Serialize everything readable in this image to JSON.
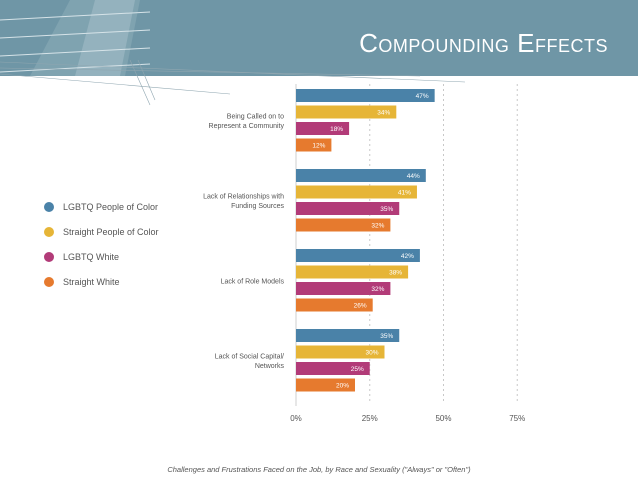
{
  "slide": {
    "title": "Compounding Effects",
    "header_color": "#6f96a6",
    "caption": "Challenges and Frustrations Faced on the Job, by Race and Sexuality (\"Always\" or \"Often\")"
  },
  "chart_data": {
    "type": "bar",
    "orientation": "horizontal",
    "title": "",
    "xlabel": "",
    "ylabel": "",
    "xlim": [
      0,
      75
    ],
    "xticks": [
      "0%",
      "25%",
      "50%",
      "75%"
    ],
    "xtick_values": [
      0,
      25,
      50,
      75
    ],
    "grid": true,
    "legend_position": "left",
    "categories": [
      [
        "Being Called on to",
        "Represent a Community"
      ],
      [
        "Lack of Relationships with",
        "Funding Sources"
      ],
      [
        "Lack of Role Models"
      ],
      [
        "Lack of Social Capital/",
        "Networks"
      ]
    ],
    "series": [
      {
        "name": "LGBTQ People of Color",
        "color": "#4a82a8",
        "values": [
          47,
          44,
          42,
          35
        ],
        "labels": [
          "47%",
          "44%",
          "42%",
          "35%"
        ]
      },
      {
        "name": "Straight People of Color",
        "color": "#e6b537",
        "values": [
          34,
          41,
          38,
          30
        ],
        "labels": [
          "34%",
          "41%",
          "38%",
          "30%"
        ]
      },
      {
        "name": "LGBTQ White",
        "color": "#b23b78",
        "values": [
          18,
          35,
          32,
          25
        ],
        "labels": [
          "18%",
          "35%",
          "32%",
          "25%"
        ]
      },
      {
        "name": "Straight White",
        "color": "#e67a2e",
        "values": [
          12,
          32,
          26,
          20
        ],
        "labels": [
          "12%",
          "32%",
          "26%",
          "20%"
        ]
      }
    ]
  }
}
